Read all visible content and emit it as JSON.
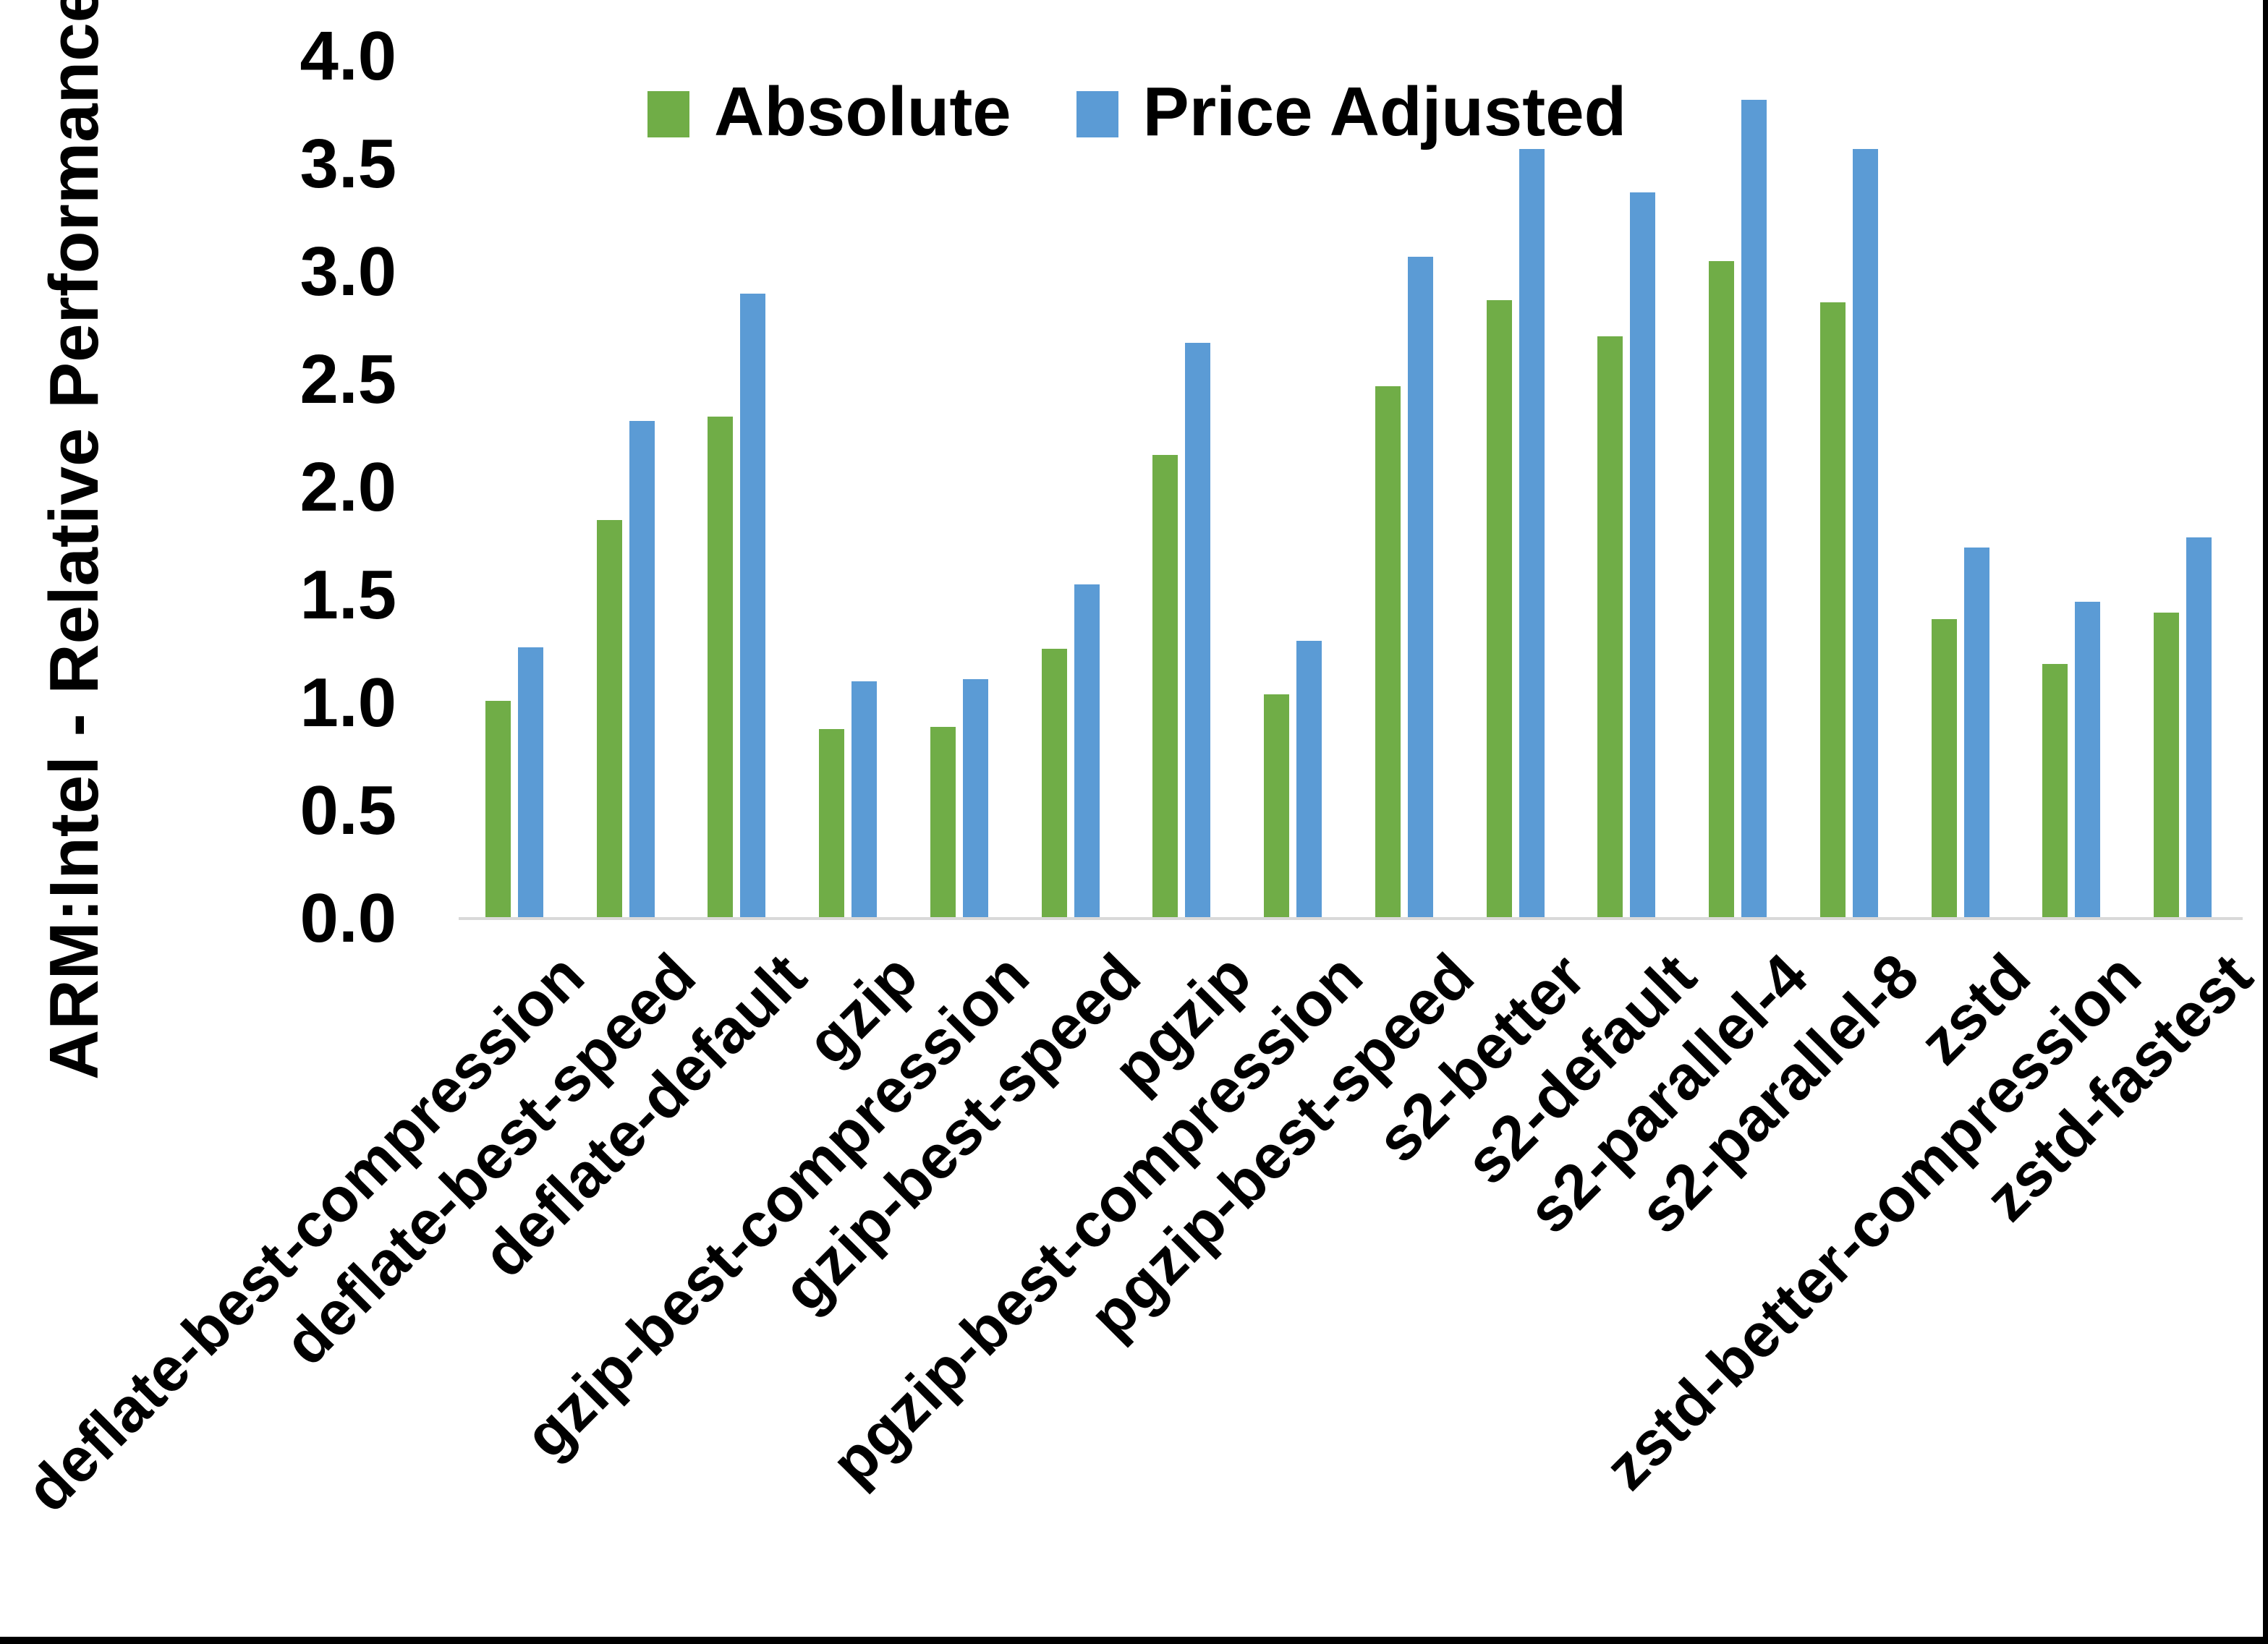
{
  "figure": {
    "background": "#FFFFFF",
    "frame_border_color": "#000000"
  },
  "chart_data": {
    "type": "bar",
    "title": "",
    "xlabel": "",
    "ylabel": "ARM:Intel - Relative Performance",
    "ylim": [
      0.0,
      4.0
    ],
    "ytick_labels": [
      "0.0",
      "0.5",
      "1.0",
      "1.5",
      "2.0",
      "2.5",
      "3.0",
      "3.5",
      "4.0"
    ],
    "grid": false,
    "legend_position": "top-center",
    "axis_line_color": "#D9D9D9",
    "text_color": "#000000",
    "categories": [
      "deflate-best-compression",
      "deflate-best-speed",
      "deflate-default",
      "gzip",
      "gzip-best-compression",
      "gzip-best-speed",
      "pgzip",
      "pgzip-best-compression",
      "pgzip-best-speed",
      "s2-better",
      "s2-default",
      "s2-parallel-4",
      "s2-parallel-8",
      "zstd",
      "zstd-better-compression",
      "zstd-fastest"
    ],
    "series": [
      {
        "name": "Absolute",
        "color": "#70AD47",
        "values": [
          1.01,
          1.85,
          2.33,
          0.88,
          0.89,
          1.25,
          2.15,
          1.04,
          2.47,
          2.87,
          2.7,
          3.05,
          2.86,
          1.39,
          1.18,
          1.42
        ]
      },
      {
        "name": "Price Adjusted",
        "color": "#5B9BD5",
        "values": [
          1.26,
          2.31,
          2.9,
          1.1,
          1.11,
          1.55,
          2.67,
          1.29,
          3.07,
          3.57,
          3.37,
          3.8,
          3.57,
          1.72,
          1.47,
          1.77
        ]
      }
    ]
  }
}
